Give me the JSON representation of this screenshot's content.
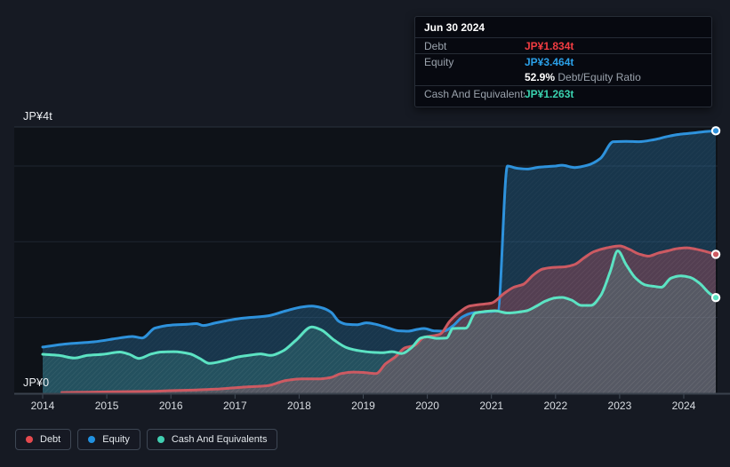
{
  "tooltip": {
    "date": "Jun 30 2024",
    "debt_label": "Debt",
    "debt_value": "JP¥1.834t",
    "debt_color": "#f23d42",
    "equity_label": "Equity",
    "equity_value": "JP¥3.464t",
    "equity_color": "#2ba0e8",
    "ratio_value": "52.9%",
    "ratio_label": "Debt/Equity Ratio",
    "cash_label": "Cash And Equivalents",
    "cash_value": "JP¥1.263t",
    "cash_color": "#3ad2af"
  },
  "legend": {
    "items": [
      {
        "label": "Debt",
        "color": "#e5494e"
      },
      {
        "label": "Equity",
        "color": "#2191e0"
      },
      {
        "label": "Cash And Equivalents",
        "color": "#41cfb2"
      }
    ]
  },
  "chart_data": {
    "type": "area",
    "unit": "JP¥ trillions",
    "y_axis": {
      "top_label": "JP¥4t",
      "zero_label": "JP¥0",
      "min": 0,
      "max": 4,
      "gridline_values": [
        1,
        2,
        3
      ]
    },
    "x_ticks": [
      "2014",
      "2015",
      "2016",
      "2017",
      "2018",
      "2019",
      "2020",
      "2021",
      "2022",
      "2023",
      "2024"
    ],
    "x_range": [
      2014,
      2024.5
    ],
    "grid": true,
    "legend_position": "bottom",
    "series": [
      {
        "name": "Equity",
        "color": "#2e92dc",
        "fill": "rgba(44,118,170,0.36)",
        "points": [
          [
            2014.0,
            0.61
          ],
          [
            2014.35,
            0.65
          ],
          [
            2014.8,
            0.68
          ],
          [
            2015.2,
            0.73
          ],
          [
            2015.4,
            0.75
          ],
          [
            2015.55,
            0.73
          ],
          [
            2015.75,
            0.86
          ],
          [
            2016.0,
            0.9
          ],
          [
            2016.25,
            0.91
          ],
          [
            2016.4,
            0.92
          ],
          [
            2016.5,
            0.895
          ],
          [
            2016.7,
            0.93
          ],
          [
            2017.1,
            0.99
          ],
          [
            2017.5,
            1.02
          ],
          [
            2017.8,
            1.09
          ],
          [
            2018.05,
            1.14
          ],
          [
            2018.2,
            1.15
          ],
          [
            2018.35,
            1.13
          ],
          [
            2018.5,
            1.07
          ],
          [
            2018.62,
            0.95
          ],
          [
            2018.75,
            0.91
          ],
          [
            2018.9,
            0.905
          ],
          [
            2019.05,
            0.93
          ],
          [
            2019.2,
            0.91
          ],
          [
            2019.38,
            0.865
          ],
          [
            2019.55,
            0.825
          ],
          [
            2019.7,
            0.82
          ],
          [
            2019.85,
            0.845
          ],
          [
            2019.95,
            0.855
          ],
          [
            2020.1,
            0.825
          ],
          [
            2020.25,
            0.82
          ],
          [
            2020.4,
            0.89
          ],
          [
            2020.55,
            1.01
          ],
          [
            2020.7,
            1.06
          ],
          [
            2020.9,
            1.075
          ],
          [
            2021.1,
            1.09
          ],
          [
            2021.25,
            3.0
          ],
          [
            2021.4,
            2.97
          ],
          [
            2021.55,
            2.96
          ],
          [
            2021.75,
            2.985
          ],
          [
            2022.0,
            3.0
          ],
          [
            2022.1,
            3.01
          ],
          [
            2022.3,
            2.98
          ],
          [
            2022.5,
            3.01
          ],
          [
            2022.7,
            3.1
          ],
          [
            2022.9,
            3.32
          ],
          [
            2023.1,
            3.325
          ],
          [
            2023.3,
            3.32
          ],
          [
            2023.55,
            3.35
          ],
          [
            2023.75,
            3.39
          ],
          [
            2023.95,
            3.42
          ],
          [
            2024.15,
            3.435
          ],
          [
            2024.35,
            3.455
          ],
          [
            2024.5,
            3.464
          ]
        ]
      },
      {
        "name": "Debt",
        "color": "#cd5a62",
        "fill": "rgba(226,85,97,0.30)",
        "points": [
          [
            2014.3,
            0.01
          ],
          [
            2014.7,
            0.015
          ],
          [
            2015.1,
            0.02
          ],
          [
            2015.6,
            0.025
          ],
          [
            2016.0,
            0.035
          ],
          [
            2016.4,
            0.045
          ],
          [
            2016.7,
            0.055
          ],
          [
            2017.1,
            0.08
          ],
          [
            2017.5,
            0.1
          ],
          [
            2017.8,
            0.17
          ],
          [
            2018.05,
            0.19
          ],
          [
            2018.3,
            0.19
          ],
          [
            2018.5,
            0.21
          ],
          [
            2018.65,
            0.26
          ],
          [
            2018.85,
            0.28
          ],
          [
            2019.0,
            0.275
          ],
          [
            2019.2,
            0.26
          ],
          [
            2019.35,
            0.39
          ],
          [
            2019.5,
            0.48
          ],
          [
            2019.65,
            0.6
          ],
          [
            2019.8,
            0.63
          ],
          [
            2019.95,
            0.74
          ],
          [
            2020.1,
            0.76
          ],
          [
            2020.2,
            0.78
          ],
          [
            2020.35,
            0.95
          ],
          [
            2020.5,
            1.07
          ],
          [
            2020.65,
            1.15
          ],
          [
            2020.8,
            1.17
          ],
          [
            2021.0,
            1.19
          ],
          [
            2021.2,
            1.32
          ],
          [
            2021.35,
            1.4
          ],
          [
            2021.5,
            1.44
          ],
          [
            2021.65,
            1.56
          ],
          [
            2021.8,
            1.64
          ],
          [
            2021.95,
            1.66
          ],
          [
            2022.15,
            1.67
          ],
          [
            2022.3,
            1.7
          ],
          [
            2022.45,
            1.79
          ],
          [
            2022.6,
            1.87
          ],
          [
            2022.8,
            1.92
          ],
          [
            2023.0,
            1.945
          ],
          [
            2023.15,
            1.9
          ],
          [
            2023.3,
            1.84
          ],
          [
            2023.45,
            1.81
          ],
          [
            2023.6,
            1.85
          ],
          [
            2023.75,
            1.88
          ],
          [
            2023.9,
            1.91
          ],
          [
            2024.05,
            1.92
          ],
          [
            2024.2,
            1.9
          ],
          [
            2024.35,
            1.87
          ],
          [
            2024.5,
            1.834
          ]
        ]
      },
      {
        "name": "Cash And Equivalents",
        "color": "#5ce3c3",
        "fill": "rgba(99,220,190,0.17)",
        "points": [
          [
            2014.0,
            0.515
          ],
          [
            2014.25,
            0.5
          ],
          [
            2014.5,
            0.465
          ],
          [
            2014.7,
            0.5
          ],
          [
            2014.95,
            0.515
          ],
          [
            2015.2,
            0.545
          ],
          [
            2015.35,
            0.515
          ],
          [
            2015.5,
            0.46
          ],
          [
            2015.7,
            0.52
          ],
          [
            2015.85,
            0.545
          ],
          [
            2016.05,
            0.55
          ],
          [
            2016.3,
            0.52
          ],
          [
            2016.45,
            0.46
          ],
          [
            2016.6,
            0.395
          ],
          [
            2016.85,
            0.435
          ],
          [
            2017.05,
            0.48
          ],
          [
            2017.25,
            0.505
          ],
          [
            2017.4,
            0.52
          ],
          [
            2017.55,
            0.5
          ],
          [
            2017.75,
            0.56
          ],
          [
            2017.95,
            0.7
          ],
          [
            2018.2,
            0.875
          ],
          [
            2018.35,
            0.835
          ],
          [
            2018.55,
            0.7
          ],
          [
            2018.75,
            0.6
          ],
          [
            2018.95,
            0.56
          ],
          [
            2019.15,
            0.54
          ],
          [
            2019.3,
            0.535
          ],
          [
            2019.45,
            0.55
          ],
          [
            2019.6,
            0.525
          ],
          [
            2019.75,
            0.6
          ],
          [
            2019.9,
            0.73
          ],
          [
            2020.0,
            0.745
          ],
          [
            2020.15,
            0.725
          ],
          [
            2020.3,
            0.73
          ],
          [
            2020.4,
            0.855
          ],
          [
            2020.6,
            0.86
          ],
          [
            2020.75,
            1.06
          ],
          [
            2020.9,
            1.08
          ],
          [
            2021.05,
            1.09
          ],
          [
            2021.25,
            1.06
          ],
          [
            2021.4,
            1.07
          ],
          [
            2021.55,
            1.09
          ],
          [
            2021.7,
            1.15
          ],
          [
            2021.85,
            1.22
          ],
          [
            2022.0,
            1.26
          ],
          [
            2022.1,
            1.265
          ],
          [
            2022.25,
            1.23
          ],
          [
            2022.4,
            1.16
          ],
          [
            2022.55,
            1.16
          ],
          [
            2022.7,
            1.285
          ],
          [
            2022.85,
            1.6
          ],
          [
            2022.97,
            1.88
          ],
          [
            2023.1,
            1.7
          ],
          [
            2023.25,
            1.52
          ],
          [
            2023.4,
            1.43
          ],
          [
            2023.55,
            1.41
          ],
          [
            2023.65,
            1.4
          ],
          [
            2023.8,
            1.52
          ],
          [
            2023.95,
            1.55
          ],
          [
            2024.1,
            1.53
          ],
          [
            2024.25,
            1.45
          ],
          [
            2024.4,
            1.32
          ],
          [
            2024.5,
            1.263
          ]
        ]
      }
    ]
  }
}
